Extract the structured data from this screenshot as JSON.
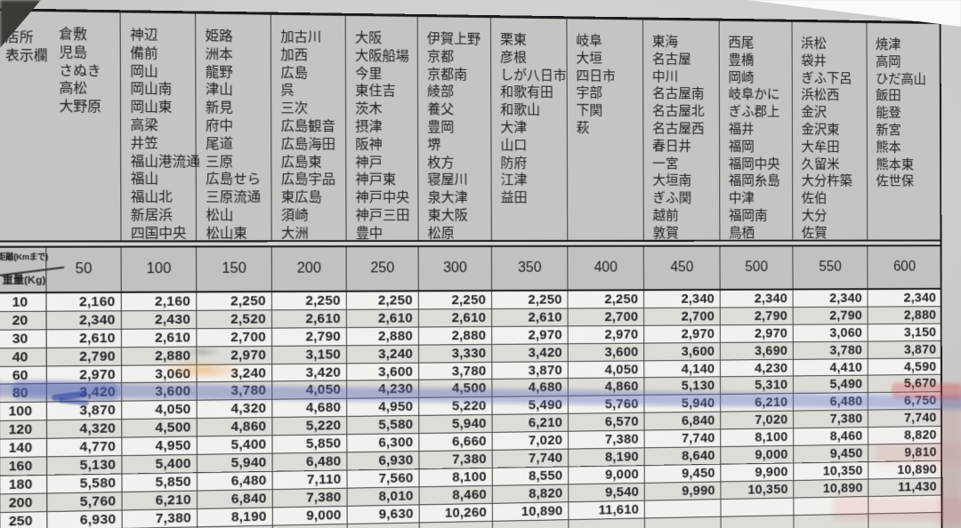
{
  "header": {
    "corner_lines": [
      "店所",
      "表示欄"
    ],
    "distance_label": "距離(Kmまで)",
    "weight_label": "重量(Kg)"
  },
  "groups": [
    {
      "distance": "50",
      "stations": [
        "倉敷",
        "児島",
        "さぬき",
        "高松",
        "大野原"
      ]
    },
    {
      "distance": "100",
      "stations": [
        "神辺",
        "備前",
        "岡山",
        "岡山南",
        "岡山東",
        "高梁",
        "井笠",
        "福山港流通",
        "福山",
        "福山北",
        "新居浜",
        "四国中央"
      ]
    },
    {
      "distance": "150",
      "stations": [
        "姫路",
        "洲本",
        "龍野",
        "津山",
        "新見",
        "府中",
        "尾道",
        "三原",
        "広島せら",
        "三原流通",
        "松山",
        "松山東"
      ]
    },
    {
      "distance": "200",
      "stations": [
        "加古川",
        "加西",
        "広島",
        "呉",
        "三次",
        "広島観音",
        "広島海田",
        "広島東",
        "広島宇品",
        "東広島",
        "須崎",
        "大洲"
      ]
    },
    {
      "distance": "250",
      "stations": [
        "大阪",
        "大阪船場",
        "今里",
        "東住吉",
        "茨木",
        "摂津",
        "阪神",
        "神戸",
        "神戸東",
        "神戸中央",
        "神戸三田",
        "豊中"
      ]
    },
    {
      "distance": "300",
      "stations": [
        "伊賀上野",
        "京都",
        "京都南",
        "綾部",
        "養父",
        "豊岡",
        "堺",
        "枚方",
        "寝屋川",
        "泉大津",
        "東大阪",
        "松原"
      ]
    },
    {
      "distance": "350",
      "stations": [
        "栗東",
        "彦根",
        "しが八日市",
        "和歌有田",
        "和歌山",
        "大津",
        "山口",
        "防府",
        "江津",
        "益田"
      ]
    },
    {
      "distance": "400",
      "stations": [
        "岐阜",
        "大垣",
        "四日市",
        "宇部",
        "下関",
        "萩"
      ]
    },
    {
      "distance": "450",
      "stations": [
        "東海",
        "名古屋",
        "中川",
        "名古屋南",
        "名古屋北",
        "名古屋西",
        "春日井",
        "一宮",
        "大垣南",
        "ぎふ関",
        "越前",
        "敦賀"
      ]
    },
    {
      "distance": "500",
      "stations": [
        "西尾",
        "豊橋",
        "岡崎",
        "岐阜かに",
        "ぎふ郡上",
        "福井",
        "福岡",
        "福岡中央",
        "福岡糸島",
        "中津",
        "福岡南",
        "鳥栖"
      ]
    },
    {
      "distance": "550",
      "stations": [
        "浜松",
        "袋井",
        "ぎふ下呂",
        "浜松西",
        "金沢",
        "金沢東",
        "大牟田",
        "久留米",
        "大分杵築",
        "佐伯",
        "大分",
        "佐賀"
      ]
    },
    {
      "distance": "600",
      "stations": [
        "焼津",
        "高岡",
        "ひだ高山",
        "飯田",
        "能登",
        "新宮",
        "熊本",
        "熊本東",
        "佐世保"
      ]
    }
  ],
  "rates": {
    "weights": [
      "10",
      "20",
      "30",
      "40",
      "60",
      "80",
      "100",
      "120",
      "140",
      "160",
      "180",
      "200",
      "250"
    ],
    "rows": [
      [
        "2,160",
        "2,160",
        "2,250",
        "2,250",
        "2,250",
        "2,250",
        "2,250",
        "2,250",
        "2,340",
        "2,340",
        "2,340",
        "2,340"
      ],
      [
        "2,340",
        "2,430",
        "2,520",
        "2,610",
        "2,610",
        "2,610",
        "2,610",
        "2,700",
        "2,700",
        "2,790",
        "2,790",
        "2,880"
      ],
      [
        "2,610",
        "2,610",
        "2,700",
        "2,790",
        "2,880",
        "2,880",
        "2,970",
        "2,970",
        "2,970",
        "2,970",
        "3,060",
        "3,150"
      ],
      [
        "2,790",
        "2,880",
        "2,970",
        "3,150",
        "3,240",
        "3,330",
        "3,420",
        "3,600",
        "3,600",
        "3,690",
        "3,780",
        "3,870"
      ],
      [
        "2,970",
        "3,060",
        "3,240",
        "3,420",
        "3,600",
        "3,780",
        "3,870",
        "4,050",
        "4,140",
        "4,230",
        "4,410",
        "4,590"
      ],
      [
        "3,420",
        "3,600",
        "3,780",
        "4,050",
        "4,230",
        "4,500",
        "4,680",
        "4,860",
        "5,130",
        "5,310",
        "5,490",
        "5,670"
      ],
      [
        "3,870",
        "4,050",
        "4,320",
        "4,680",
        "4,950",
        "5,220",
        "5,490",
        "5,760",
        "5,940",
        "6,210",
        "6,480",
        "6,750"
      ],
      [
        "4,320",
        "4,500",
        "4,860",
        "5,220",
        "5,580",
        "5,940",
        "6,210",
        "6,570",
        "6,840",
        "7,020",
        "7,380",
        "7,740"
      ],
      [
        "4,770",
        "4,950",
        "5,400",
        "5,850",
        "6,300",
        "6,660",
        "7,020",
        "7,380",
        "7,740",
        "8,100",
        "8,460",
        "8,820"
      ],
      [
        "5,130",
        "5,400",
        "5,940",
        "6,480",
        "6,930",
        "7,380",
        "7,740",
        "8,190",
        "8,640",
        "9,000",
        "9,450",
        "9,810"
      ],
      [
        "5,580",
        "5,850",
        "6,480",
        "7,110",
        "7,560",
        "8,100",
        "8,550",
        "9,000",
        "9,450",
        "9,900",
        "10,350",
        "10,890"
      ],
      [
        "5,760",
        "6,210",
        "6,840",
        "7,380",
        "8,010",
        "8,460",
        "8,820",
        "9,540",
        "9,990",
        "10,350",
        "10,890",
        "11,430"
      ],
      [
        "6,930",
        "7,380",
        "8,190",
        "9,000",
        "9,630",
        "10,260",
        "10,890",
        "11,610",
        "",
        "",
        "",
        ""
      ]
    ],
    "cutoff_row_weight": "300"
  },
  "annotations": {
    "highlighted_weight_row": "80",
    "blue_highlight_color": "#5d70be",
    "orange_mark_color": "#e29238",
    "red_mark_color": "#d25660"
  }
}
